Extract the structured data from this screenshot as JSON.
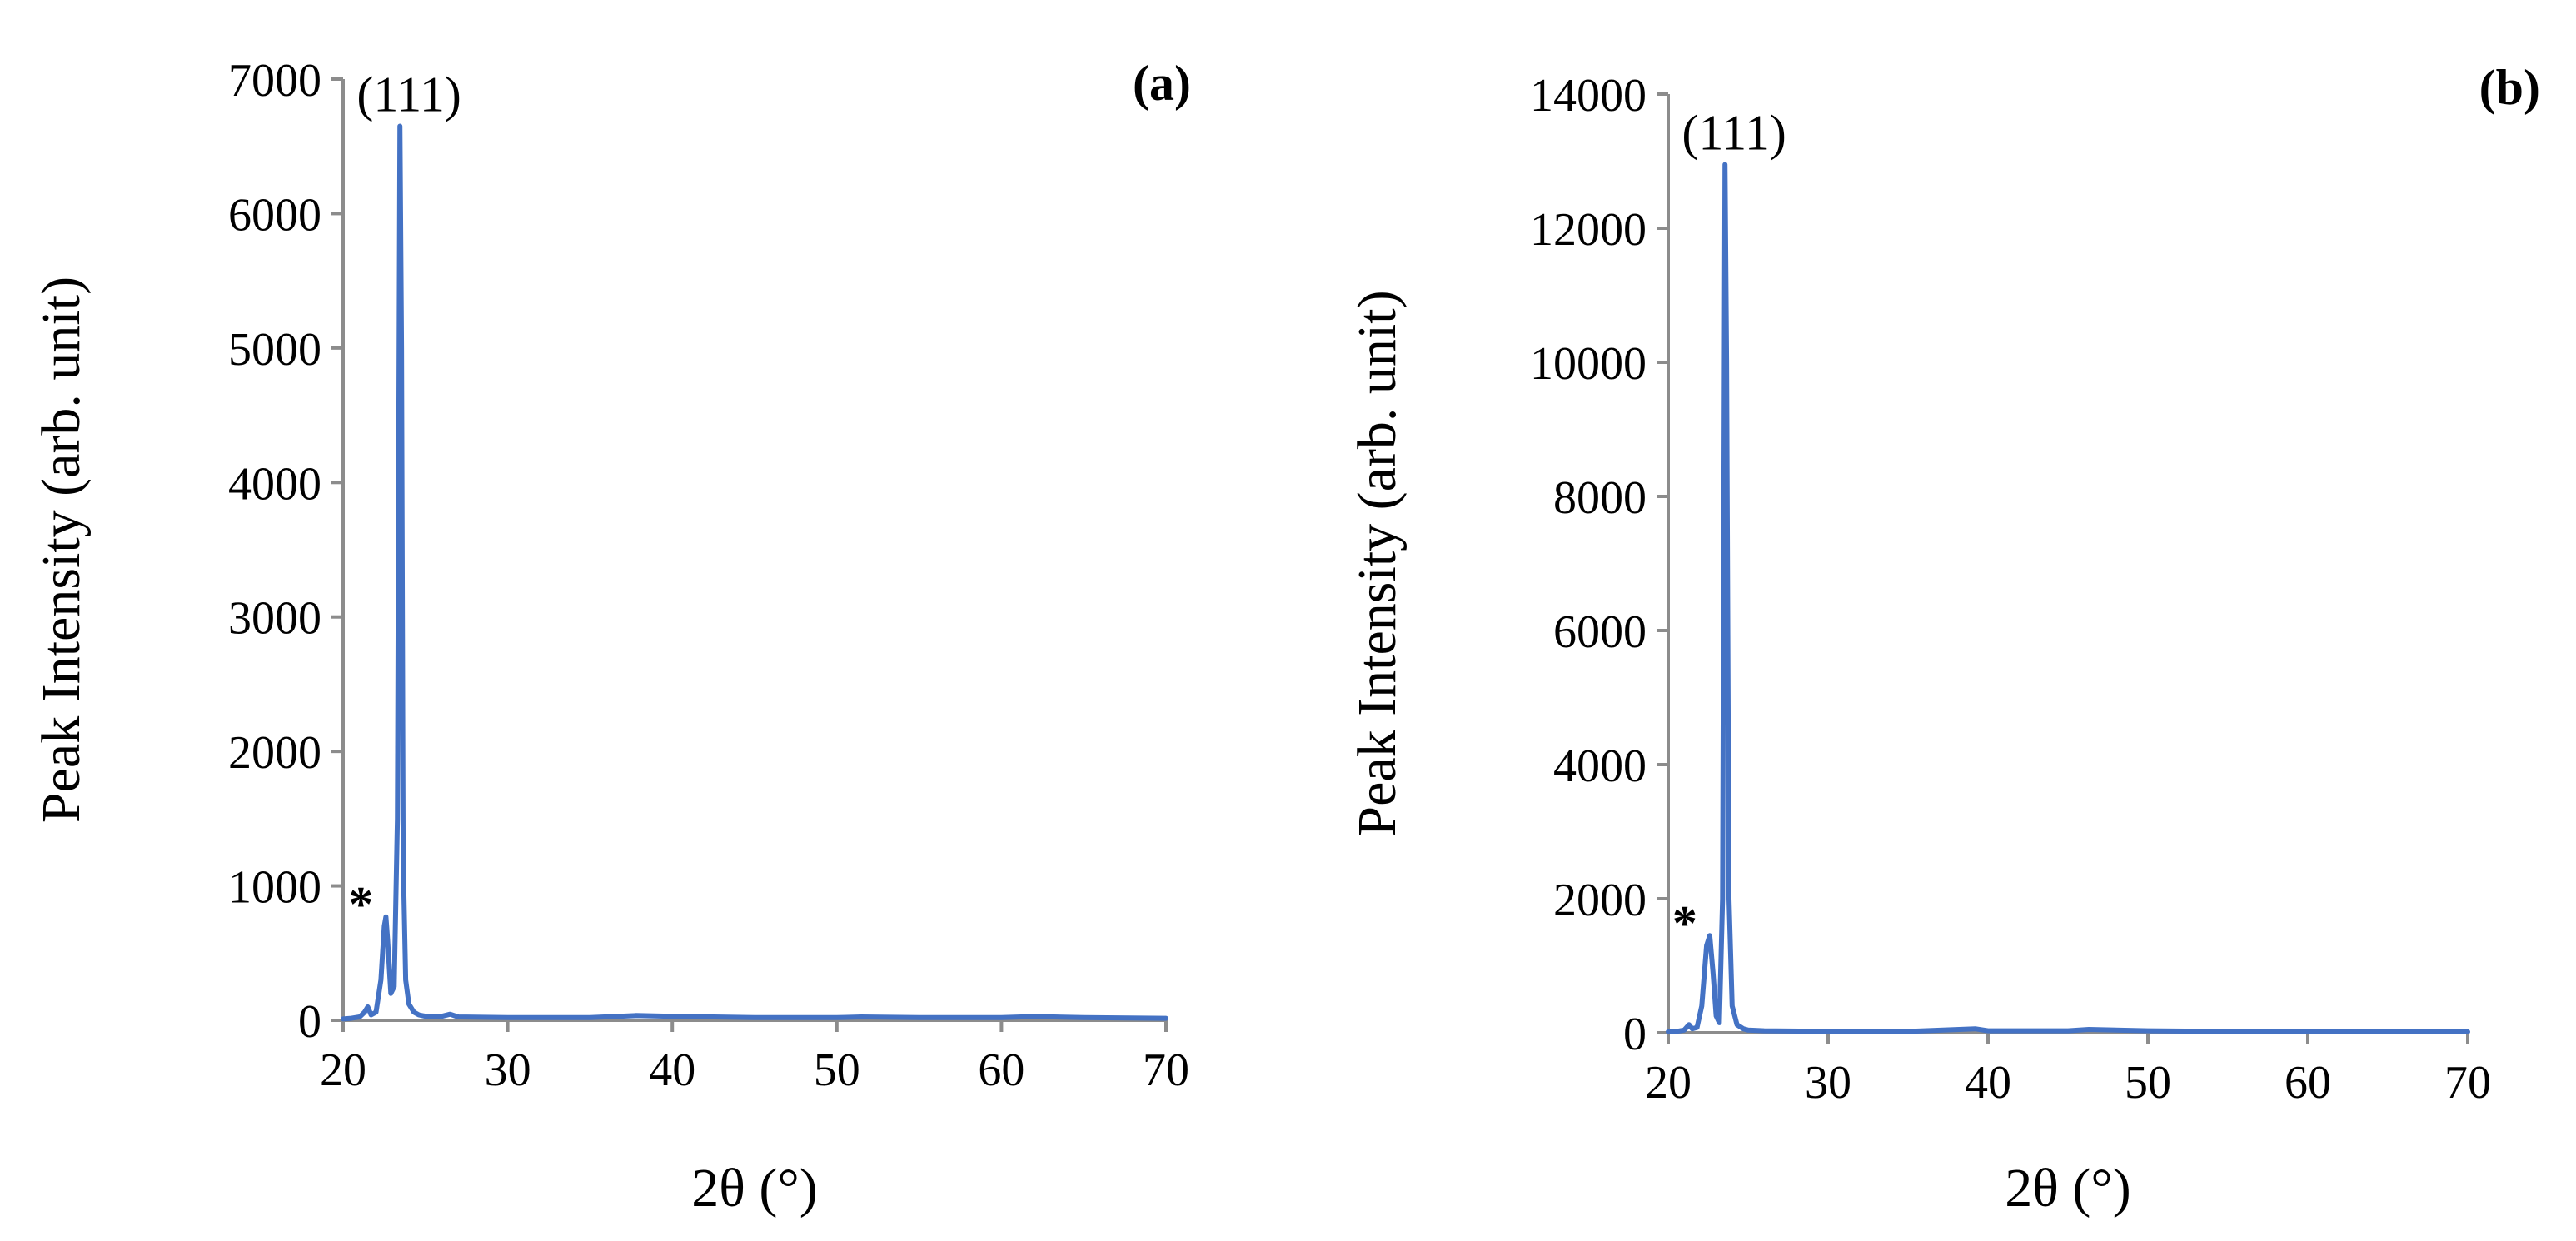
{
  "chart_data": [
    {
      "type": "line",
      "panel_label": "(a)",
      "xlabel": "2θ (°)",
      "ylabel": "Peak Intensity (arb. unit)",
      "xlim": [
        20,
        70
      ],
      "ylim": [
        0,
        7000
      ],
      "x_ticks": [
        20,
        30,
        40,
        50,
        60,
        70
      ],
      "y_ticks": [
        0,
        1000,
        2000,
        3000,
        4000,
        5000,
        6000,
        7000
      ],
      "grid": false,
      "series_color": "#4472C4",
      "annotations": [
        {
          "text": "(111)",
          "x": 23.5,
          "y": 6650
        },
        {
          "text": "*",
          "x": 22.6,
          "y": 770
        }
      ],
      "series": [
        {
          "x": [
            20.0,
            20.5,
            21.0,
            21.3,
            21.5,
            21.7,
            22.0,
            22.3,
            22.5,
            22.6,
            22.7,
            22.9,
            23.1,
            23.3,
            23.45,
            23.55,
            23.65,
            23.8,
            24.0,
            24.3,
            24.6,
            25.0,
            26.0,
            26.5,
            27.0,
            30.0,
            35.0,
            37.8,
            40.0,
            45.0,
            50.0,
            51.5,
            55.0,
            60.0,
            62.0,
            65.0,
            70.0
          ],
          "y": [
            10,
            15,
            25,
            60,
            100,
            40,
            60,
            300,
            700,
            770,
            600,
            200,
            250,
            1500,
            6650,
            5000,
            1200,
            300,
            120,
            60,
            40,
            30,
            30,
            45,
            25,
            20,
            20,
            35,
            30,
            20,
            20,
            25,
            20,
            20,
            28,
            20,
            15
          ]
        }
      ]
    },
    {
      "type": "line",
      "panel_label": "(b)",
      "xlabel": "2θ (°)",
      "ylabel": "Peak Intensity (arb. unit)",
      "xlim": [
        20,
        70
      ],
      "ylim": [
        0,
        14000
      ],
      "x_ticks": [
        20,
        30,
        40,
        50,
        60,
        70
      ],
      "y_ticks": [
        0,
        2000,
        4000,
        6000,
        8000,
        10000,
        12000,
        14000
      ],
      "grid": false,
      "series_color": "#4472C4",
      "annotations": [
        {
          "text": "(111)",
          "x": 23.6,
          "y": 12950
        },
        {
          "text": "*",
          "x": 22.6,
          "y": 1450
        }
      ],
      "series": [
        {
          "x": [
            20.0,
            20.5,
            21.0,
            21.3,
            21.5,
            21.8,
            22.1,
            22.4,
            22.6,
            22.8,
            23.0,
            23.2,
            23.4,
            23.55,
            23.65,
            23.8,
            24.0,
            24.3,
            24.7,
            25.0,
            26.0,
            30.0,
            35.0,
            39.2,
            40.0,
            45.0,
            46.3,
            50.0,
            55.0,
            60.0,
            65.0,
            70.0
          ],
          "y": [
            15,
            20,
            40,
            120,
            60,
            80,
            400,
            1300,
            1450,
            900,
            250,
            150,
            2000,
            12950,
            10000,
            2000,
            400,
            120,
            60,
            40,
            30,
            20,
            20,
            60,
            30,
            30,
            50,
            30,
            20,
            20,
            20,
            15
          ]
        }
      ]
    }
  ]
}
